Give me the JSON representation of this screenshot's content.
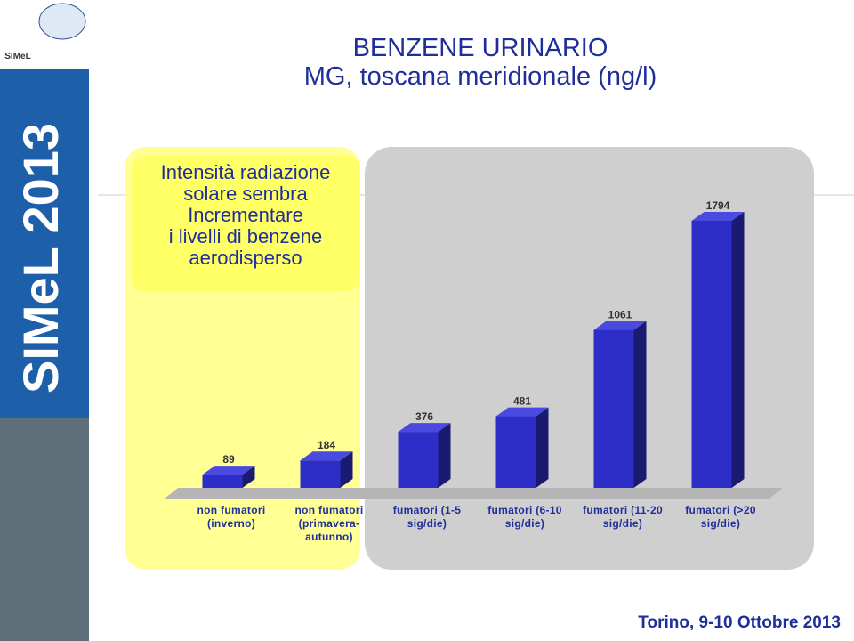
{
  "header": {
    "logo": "SIMeL",
    "banner": "SIMeL 2013",
    "footer": "Torino, 9-10 Ottobre 2013"
  },
  "chart_data": {
    "type": "bar3d",
    "title": "BENZENE URINARIO",
    "subtitle": "MG, toscana meridionale (ng/l)",
    "annotation": "Intensità radiazione\nsolare sembra\nIncrementare\ni livelli di benzene\naerodisperso",
    "categories": [
      "non fumatori\n(inverno)",
      "non fumatori\n(primavera-\nautunno)",
      "fumatori (1-5\nsig/die)",
      "fumatori (6-10\nsig/die)",
      "fumatori (11-20\nsig/die)",
      "fumatori (>20\nsig/die)"
    ],
    "values": [
      89,
      184,
      376,
      481,
      1061,
      1794
    ],
    "color": "#2d2dc8"
  }
}
